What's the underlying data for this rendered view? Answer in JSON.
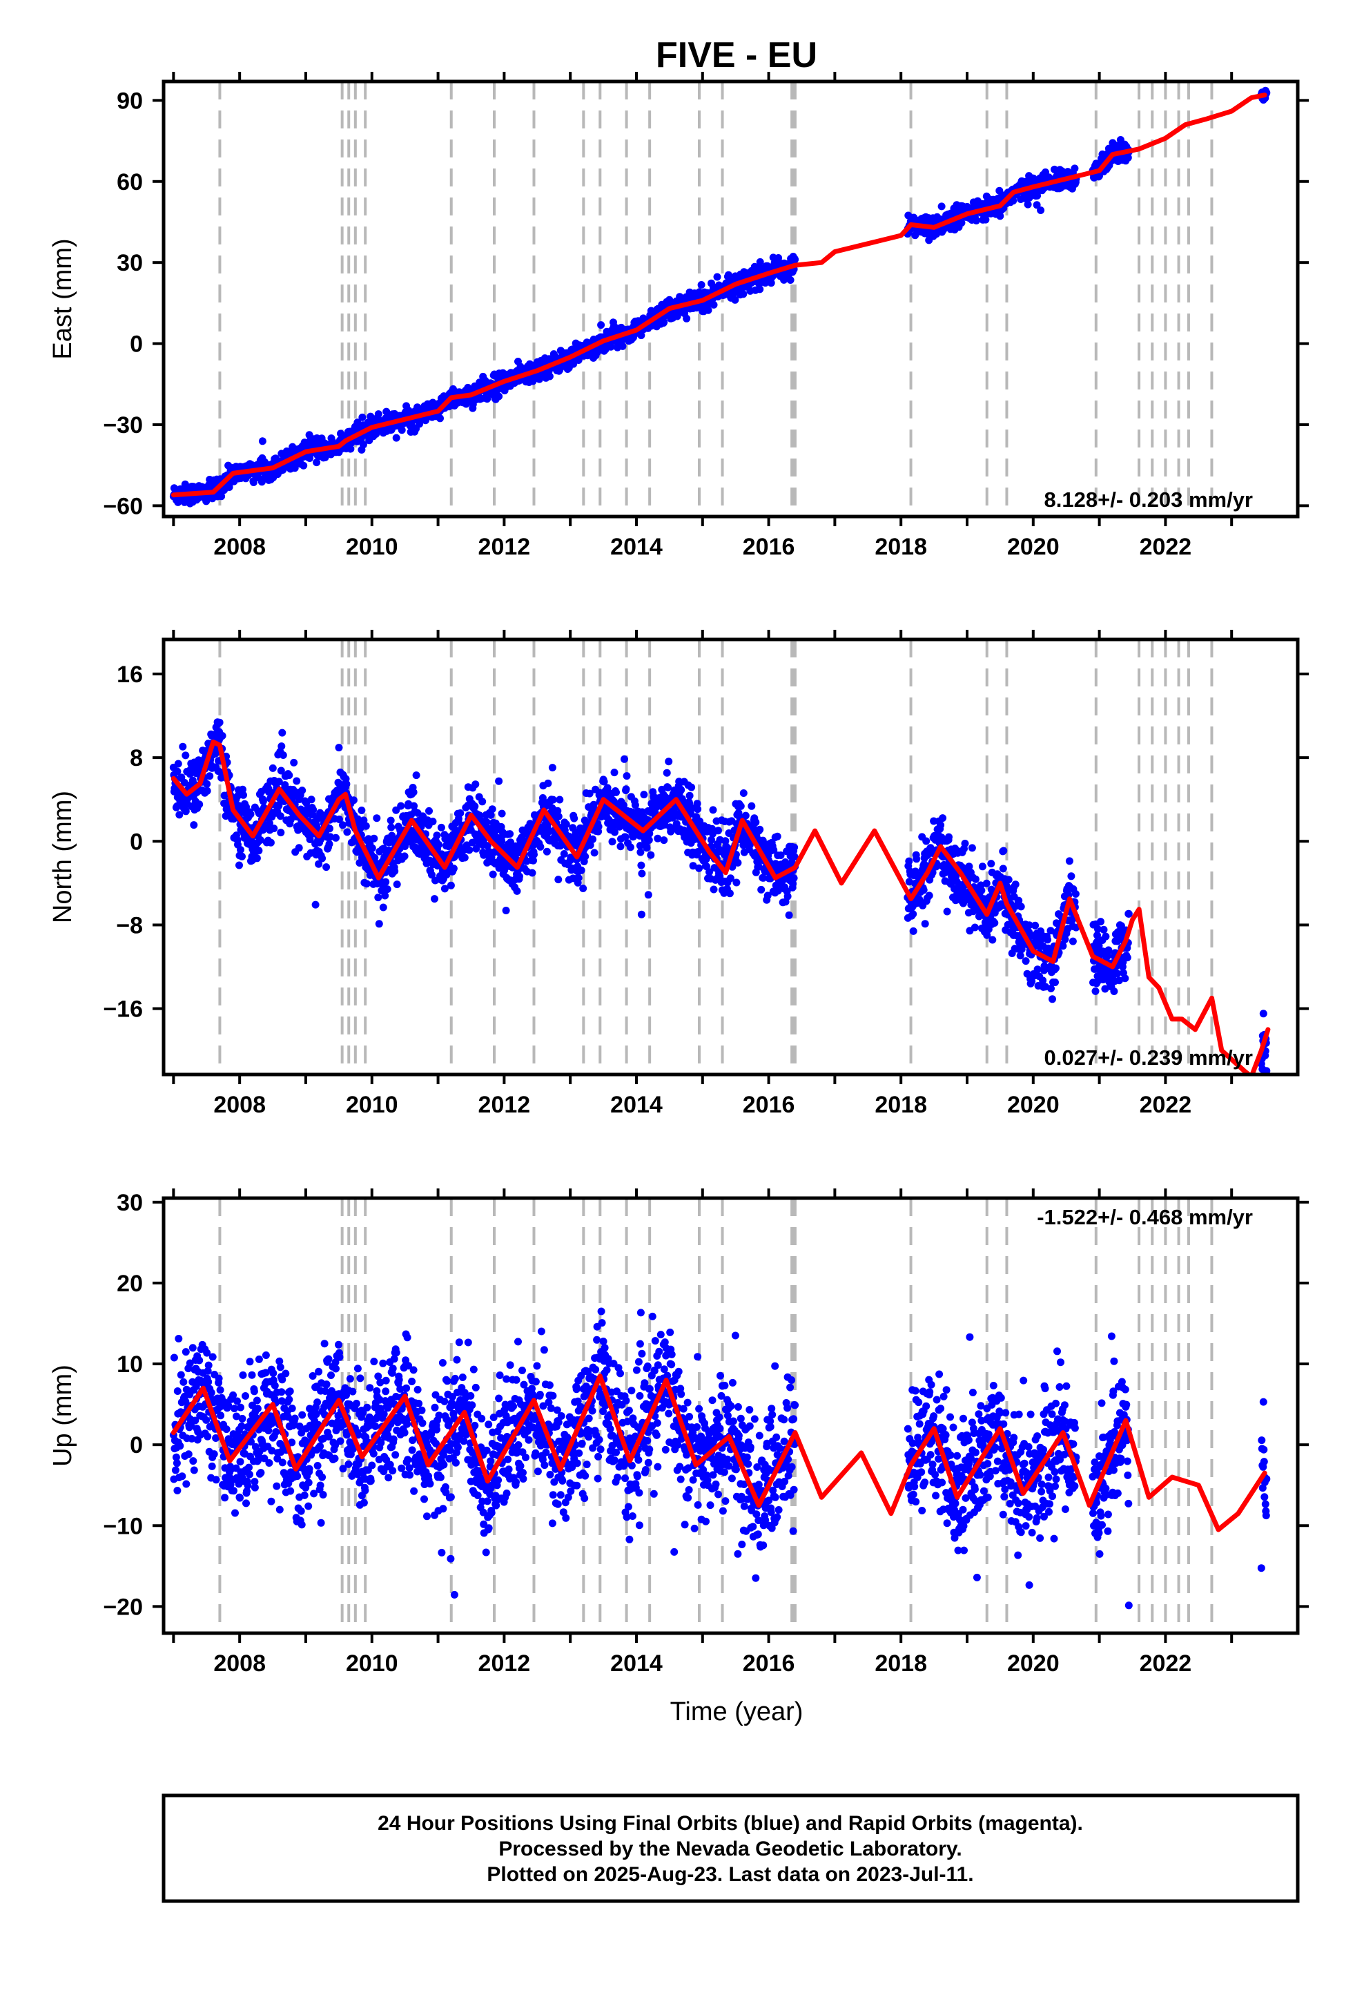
{
  "chart_data": {
    "title": "FIVE - EU",
    "xlabel": "Time (year)",
    "xlim": [
      2006.85,
      2024.0
    ],
    "x_ticks": [
      "2008",
      "2010",
      "2012",
      "2014",
      "2016",
      "2018",
      "2020",
      "2022"
    ],
    "legend_lines": [
      "24 Hour Positions Using Final Orbits (blue) and Rapid Orbits (magenta).",
      "Processed by the Nevada Geodetic Laboratory.",
      "Plotted on 2025-Aug-23. Last data on 2023-Jul-11."
    ],
    "event_lines": [
      2007.7,
      2009.55,
      2009.65,
      2009.75,
      2009.9,
      2011.2,
      2011.85,
      2012.45,
      2013.2,
      2013.45,
      2013.85,
      2014.2,
      2014.95,
      2015.3,
      2016.35,
      2016.38,
      2016.4,
      2018.15,
      2019.3,
      2019.6,
      2020.95,
      2021.6,
      2021.8,
      2022.0,
      2022.2,
      2022.35,
      2022.7
    ],
    "data_segments": [
      [
        2007.0,
        2016.4
      ],
      [
        2018.1,
        2020.65
      ],
      [
        2020.9,
        2021.45
      ],
      [
        2023.45,
        2023.53
      ]
    ],
    "panels": [
      {
        "type": "scatter",
        "ylabel": "East (mm)",
        "ylim": [
          -64,
          97
        ],
        "y_ticks": [
          "90",
          "60",
          "30",
          "0",
          "−30",
          "−60"
        ],
        "rate_text": "8.128+/- 0.203 mm/yr",
        "rate_position": "bottom-right",
        "point_scatter_mm": 1.8,
        "model": {
          "x": [
            2007.0,
            2007.6,
            2007.9,
            2008.5,
            2009.0,
            2009.5,
            2009.6,
            2010.0,
            2010.5,
            2011.0,
            2011.2,
            2011.5,
            2012.0,
            2012.5,
            2013.0,
            2013.5,
            2014.0,
            2014.5,
            2015.0,
            2015.5,
            2016.0,
            2016.4,
            2016.8,
            2017.0,
            2017.5,
            2018.0,
            2018.15,
            2018.5,
            2019.0,
            2019.5,
            2019.7,
            2020.0,
            2020.5,
            2021.0,
            2021.2,
            2021.6,
            2022.0,
            2022.3,
            2022.6,
            2023.0,
            2023.3,
            2023.5
          ],
          "y": [
            -56,
            -55,
            -48,
            -46,
            -40,
            -38,
            -36,
            -31,
            -28,
            -25,
            -20,
            -19,
            -14,
            -10,
            -5,
            1,
            5,
            13,
            16,
            22,
            26,
            29,
            30,
            34,
            37,
            40,
            44,
            43,
            48,
            51,
            56,
            58,
            61,
            64,
            70,
            72,
            76,
            81,
            83,
            86,
            91,
            92
          ]
        }
      },
      {
        "type": "scatter",
        "ylabel": "North (mm)",
        "ylim": [
          -22.3,
          19.3
        ],
        "y_ticks": [
          "16",
          "8",
          "0",
          "−8",
          "−16"
        ],
        "rate_text": "0.027+/- 0.239 mm/yr",
        "rate_position": "bottom-right",
        "point_scatter_mm": 1.5,
        "model": {
          "x": [
            2007.0,
            2007.2,
            2007.4,
            2007.6,
            2007.7,
            2007.9,
            2008.2,
            2008.6,
            2008.9,
            2009.2,
            2009.5,
            2009.6,
            2009.75,
            2010.1,
            2010.6,
            2011.1,
            2011.5,
            2011.8,
            2012.2,
            2012.6,
            2013.1,
            2013.5,
            2014.1,
            2014.6,
            2015.1,
            2015.35,
            2015.6,
            2016.1,
            2016.4,
            2016.7,
            2017.1,
            2017.6,
            2018.15,
            2018.4,
            2018.6,
            2018.9,
            2019.3,
            2019.5,
            2019.6,
            2020.0,
            2020.3,
            2020.55,
            2020.9,
            2021.2,
            2021.4,
            2021.5,
            2021.6,
            2021.75,
            2021.9,
            2022.1,
            2022.25,
            2022.45,
            2022.7,
            2022.85,
            2023.2,
            2023.3,
            2023.45,
            2023.55
          ],
          "y": [
            6,
            4.5,
            5.5,
            9.5,
            9.2,
            3,
            0.5,
            5,
            2.5,
            0.5,
            4,
            4.5,
            1,
            -3.5,
            2,
            -2.5,
            2.5,
            0,
            -2.5,
            3,
            -1.5,
            4,
            1,
            4,
            -1,
            -3,
            2,
            -3.5,
            -2.5,
            1,
            -4,
            1,
            -5.5,
            -3,
            -0.5,
            -3,
            -7,
            -4,
            -6,
            -10.5,
            -11.5,
            -5.5,
            -11,
            -12,
            -9.5,
            -7.5,
            -6.5,
            -13,
            -14,
            -17,
            -17,
            -18,
            -15,
            -20,
            -22,
            -22.5,
            -20,
            -18
          ]
        }
      },
      {
        "type": "scatter",
        "ylabel": "Up (mm)",
        "ylim": [
          -23.3,
          30.5
        ],
        "y_ticks": [
          "30",
          "20",
          "10",
          "0",
          "−10",
          "−20"
        ],
        "rate_text": "-1.522+/- 0.468 mm/yr",
        "rate_position": "top-right",
        "point_scatter_mm": 4.0,
        "model": {
          "x": [
            2007.0,
            2007.45,
            2007.85,
            2008.5,
            2008.85,
            2009.5,
            2009.85,
            2010.5,
            2010.85,
            2011.4,
            2011.75,
            2012.45,
            2012.85,
            2013.45,
            2013.9,
            2014.45,
            2014.9,
            2015.4,
            2015.85,
            2016.4,
            2016.8,
            2017.4,
            2017.85,
            2018.15,
            2018.5,
            2018.85,
            2019.5,
            2019.85,
            2020.45,
            2020.85,
            2021.4,
            2021.75,
            2022.1,
            2022.5,
            2022.8,
            2023.1,
            2023.5
          ],
          "y": [
            1.5,
            7,
            -2,
            5,
            -3,
            5.5,
            -1.5,
            6,
            -2.5,
            4,
            -4.5,
            5.5,
            -3,
            8.5,
            -2,
            8,
            -2.5,
            1,
            -7.5,
            1.5,
            -6.5,
            -1,
            -8.5,
            -2.5,
            2,
            -6.5,
            2,
            -6,
            1.5,
            -7.5,
            3,
            -6.5,
            -4,
            -5,
            -10.5,
            -8.5,
            -3.5
          ]
        }
      }
    ]
  }
}
